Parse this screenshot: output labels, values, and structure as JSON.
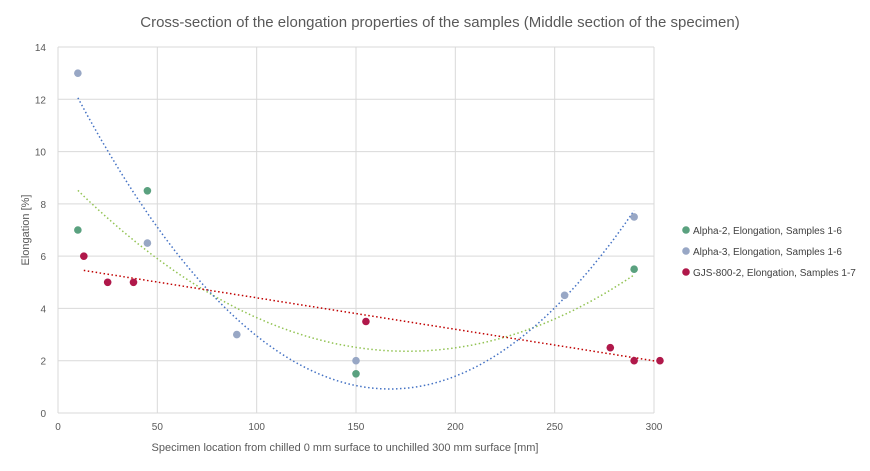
{
  "chart_data": {
    "type": "scatter",
    "title": "Cross-section of the elongation properties of the samples (Middle section of the specimen)",
    "xlabel": "Specimen location from chilled 0 mm surface to unchilled 300 mm surface [mm]",
    "ylabel": "Elongation [%]",
    "xlim": [
      0,
      300
    ],
    "ylim": [
      0,
      14
    ],
    "xticks": [
      0,
      50,
      100,
      150,
      200,
      250,
      300
    ],
    "yticks": [
      0,
      2,
      4,
      6,
      8,
      10,
      12,
      14
    ],
    "grid": true,
    "legend_position": "right",
    "series": [
      {
        "name": "Alpha-2, Elongation, Samples 1-6",
        "color": "#5aa17f",
        "trend_color": "#92c353",
        "trend": "polynomial-2",
        "points": [
          [
            10,
            7
          ],
          [
            45,
            8.5
          ],
          [
            150,
            1.5
          ],
          [
            290,
            5.5
          ]
        ]
      },
      {
        "name": "Alpha-3, Elongation, Samples 1-6",
        "color": "#98a7c5",
        "trend_color": "#4472c4",
        "trend": "polynomial-2",
        "points": [
          [
            10,
            13
          ],
          [
            45,
            6.5
          ],
          [
            90,
            3
          ],
          [
            150,
            2
          ],
          [
            255,
            4.5
          ],
          [
            290,
            7.5
          ]
        ]
      },
      {
        "name": "GJS-800-2, Elongation, Samples 1-7",
        "color": "#b0184a",
        "trend_color": "#c00000",
        "trend": "linear",
        "points": [
          [
            13,
            6
          ],
          [
            25,
            5
          ],
          [
            38,
            5
          ],
          [
            155,
            3.5
          ],
          [
            278,
            2.5
          ],
          [
            290,
            2
          ],
          [
            303,
            2
          ]
        ]
      }
    ]
  }
}
